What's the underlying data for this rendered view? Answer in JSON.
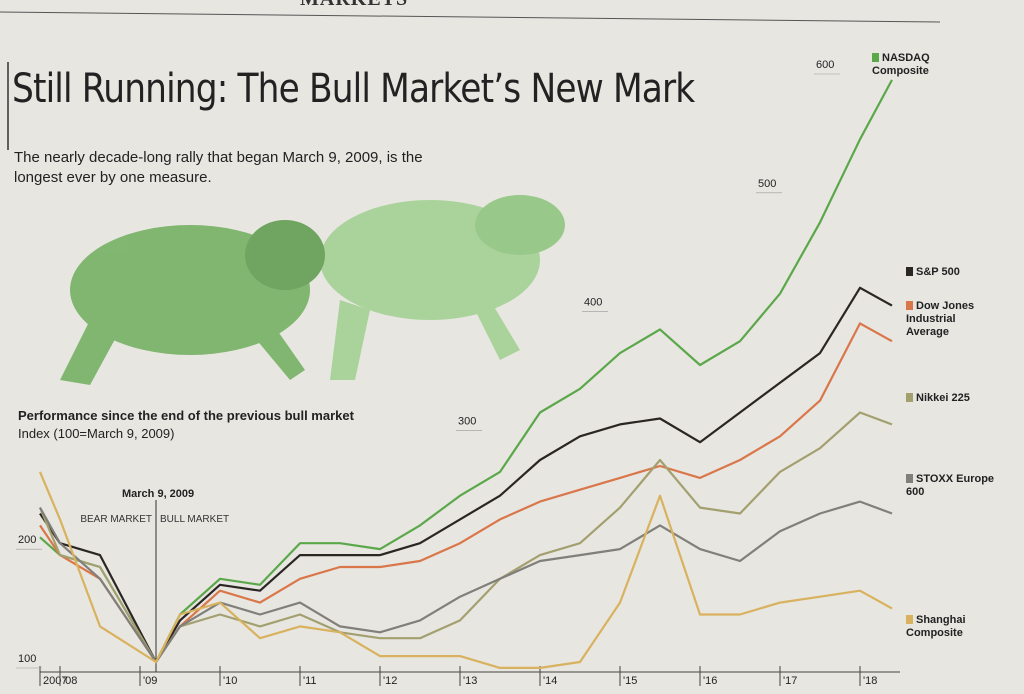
{
  "header": "MARKETS",
  "chart_data": {
    "type": "line",
    "title": "Still Running: The Bull Market’s New Mark",
    "subtitle": "The nearly decade-long rally that began March 9, 2009, is the longest ever by one measure.",
    "chart_label": "Performance since the end of the previous bull market",
    "axis_label": "Index (100=March 9, 2009)",
    "annotations": [
      "March 9, 2009",
      "BEAR MARKET",
      "BULL MARKET"
    ],
    "x": [
      2007.75,
      2008,
      2008.5,
      2009.2,
      2009.5,
      2010,
      2010.5,
      2011,
      2011.5,
      2012,
      2012.5,
      2013,
      2013.5,
      2014,
      2014.5,
      2015,
      2015.5,
      2016,
      2016.5,
      2017,
      2017.5,
      2018,
      2018.4
    ],
    "series": [
      {
        "name": "NASDAQ Composite",
        "color": "#5aa84a",
        "values": [
          205,
          190,
          180,
          100,
          140,
          170,
          165,
          200,
          200,
          195,
          215,
          240,
          260,
          310,
          330,
          360,
          380,
          350,
          370,
          410,
          470,
          540,
          590
        ]
      },
      {
        "name": "S&P 500",
        "color": "#2a2624",
        "values": [
          225,
          200,
          190,
          100,
          135,
          165,
          160,
          190,
          190,
          190,
          200,
          220,
          240,
          270,
          290,
          300,
          305,
          285,
          310,
          335,
          360,
          415,
          400
        ]
      },
      {
        "name": "Dow Jones Industrial Average",
        "color": "#d9764a",
        "values": [
          215,
          190,
          170,
          100,
          130,
          160,
          150,
          170,
          180,
          180,
          185,
          200,
          220,
          235,
          245,
          255,
          265,
          255,
          270,
          290,
          320,
          385,
          370
        ]
      },
      {
        "name": "Nikkei 225",
        "color": "#a3a070",
        "values": [
          230,
          190,
          180,
          100,
          130,
          140,
          130,
          140,
          125,
          120,
          120,
          135,
          170,
          190,
          200,
          230,
          270,
          230,
          225,
          260,
          280,
          310,
          300
        ]
      },
      {
        "name": "STOXX Europe 600",
        "color": "#807f7a",
        "values": [
          230,
          200,
          170,
          100,
          130,
          150,
          140,
          150,
          130,
          125,
          135,
          155,
          170,
          185,
          190,
          195,
          215,
          195,
          185,
          210,
          225,
          235,
          225
        ]
      },
      {
        "name": "Shanghai Composite",
        "color": "#d8b25e",
        "values": [
          260,
          220,
          130,
          100,
          140,
          150,
          120,
          130,
          125,
          105,
          105,
          105,
          95,
          95,
          100,
          150,
          240,
          140,
          140,
          150,
          155,
          160,
          145
        ]
      }
    ],
    "xlim": [
      2007.75,
      2018.5
    ],
    "xticks": [
      {
        "value": 2007.75,
        "label": "2007"
      },
      {
        "value": 2008,
        "label": "'08"
      },
      {
        "value": 2009,
        "label": "'09"
      },
      {
        "value": 2010,
        "label": "'10"
      },
      {
        "value": 2011,
        "label": "'11"
      },
      {
        "value": 2012,
        "label": "'12"
      },
      {
        "value": 2013,
        "label": "'13"
      },
      {
        "value": 2014,
        "label": "'14"
      },
      {
        "value": 2015,
        "label": "'15"
      },
      {
        "value": 2016,
        "label": "'16"
      },
      {
        "value": 2017,
        "label": "'17"
      },
      {
        "value": 2018,
        "label": "'18"
      }
    ],
    "ylim": [
      100,
      600
    ],
    "yticks": [
      100,
      200,
      300,
      400,
      500,
      600
    ],
    "marker_x": 2009.2,
    "grid": false
  }
}
